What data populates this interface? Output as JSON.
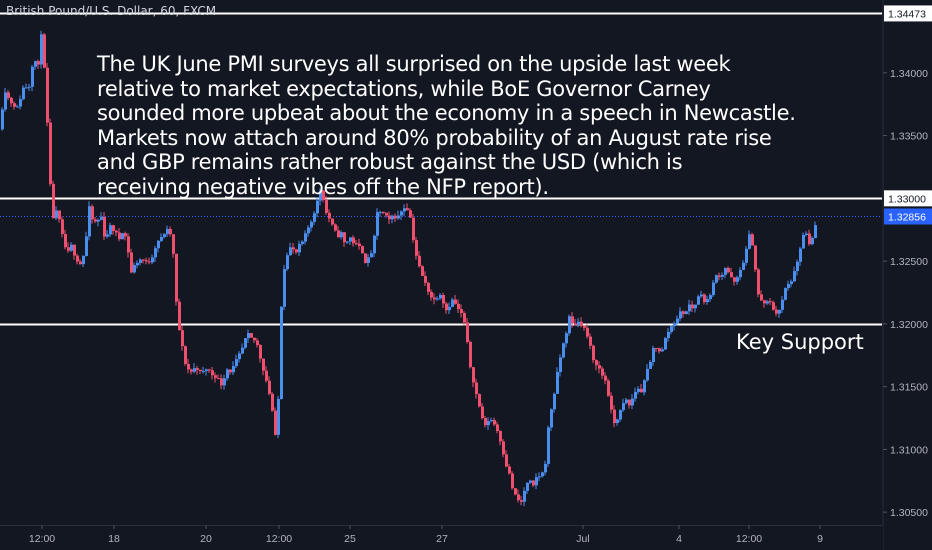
{
  "symbol_title": "British Pound/U.S. Dollar, 60, FXCM",
  "commentary_lines": [
    "The UK June PMI surveys all surprised on the upside last week",
    "relative to market expectations, while BoE Governor Carney",
    "sounded more upbeat about the economy in a speech in Newcastle.",
    "Markets now attach around 80% probability of an August rate rise",
    "and GBP remains rather robust against the USD (which is",
    "receiving negative vibes off the NFP report)."
  ],
  "annotation": "Key Support",
  "colors": {
    "background": "#131722",
    "up_candle": "#4a8ef0",
    "down_candle": "#f0506e",
    "level_line": "#ffffff",
    "current_price_line": "#2962ff",
    "axis_text": "#b2b5be"
  },
  "chart_data": {
    "type": "candlestick",
    "title": "British Pound/U.S. Dollar, 60, FXCM",
    "xlabel": "",
    "ylabel": "",
    "ylim": [
      1.3035,
      1.3458
    ],
    "grid": false,
    "x_ticks": [
      "12:00",
      "18",
      "20",
      "12:00",
      "25",
      "27",
      "Jul",
      "4",
      "12:00",
      "9"
    ],
    "y_ticks": [
      "1.34000",
      "1.33500",
      "1.32500",
      "1.32000",
      "1.31500",
      "1.31000",
      "1.30500"
    ],
    "horizontal_levels": [
      {
        "value": 1.34473,
        "label": "1.34473"
      },
      {
        "value": 1.33,
        "label": "1.33000"
      },
      {
        "value": 1.32,
        "label": "1.32000",
        "annotation": "Key Support"
      }
    ],
    "current_price": {
      "value": 1.32856,
      "label": "1.32856"
    },
    "price_path": [
      [
        0,
        1.3355
      ],
      [
        2,
        1.339
      ],
      [
        8,
        1.3378
      ],
      [
        16,
        1.3372
      ],
      [
        22,
        1.3388
      ],
      [
        28,
        1.339
      ],
      [
        32,
        1.3412
      ],
      [
        37,
        1.3405
      ],
      [
        38,
        1.3447
      ],
      [
        41,
        1.3425
      ],
      [
        45,
        1.338
      ],
      [
        48,
        1.3318
      ],
      [
        52,
        1.3285
      ],
      [
        56,
        1.329
      ],
      [
        61,
        1.327
      ],
      [
        66,
        1.3255
      ],
      [
        70,
        1.3262
      ],
      [
        75,
        1.3252
      ],
      [
        80,
        1.3247
      ],
      [
        84,
        1.3262
      ],
      [
        88,
        1.3292
      ],
      [
        92,
        1.328
      ],
      [
        96,
        1.3282
      ],
      [
        100,
        1.3285
      ],
      [
        104,
        1.3266
      ],
      [
        108,
        1.3278
      ],
      [
        112,
        1.3275
      ],
      [
        118,
        1.3268
      ],
      [
        122,
        1.3276
      ],
      [
        126,
        1.3263
      ],
      [
        130,
        1.3241
      ],
      [
        134,
        1.3248
      ],
      [
        140,
        1.3252
      ],
      [
        146,
        1.3248
      ],
      [
        150,
        1.3252
      ],
      [
        156,
        1.3266
      ],
      [
        160,
        1.3268
      ],
      [
        165,
        1.3275
      ],
      [
        171,
        1.327
      ],
      [
        174,
        1.3225
      ],
      [
        177,
        1.32
      ],
      [
        180,
        1.3185
      ],
      [
        185,
        1.3165
      ],
      [
        190,
        1.3162
      ],
      [
        195,
        1.3166
      ],
      [
        200,
        1.316
      ],
      [
        206,
        1.3165
      ],
      [
        210,
        1.316
      ],
      [
        215,
        1.3158
      ],
      [
        220,
        1.3152
      ],
      [
        226,
        1.3164
      ],
      [
        230,
        1.3162
      ],
      [
        236,
        1.3172
      ],
      [
        240,
        1.3178
      ],
      [
        246,
        1.3192
      ],
      [
        250,
        1.3188
      ],
      [
        255,
        1.3186
      ],
      [
        260,
        1.317
      ],
      [
        265,
        1.3155
      ],
      [
        270,
        1.3138
      ],
      [
        274,
        1.311
      ],
      [
        277,
        1.314
      ],
      [
        280,
        1.3215
      ],
      [
        282,
        1.324
      ],
      [
        285,
        1.3255
      ],
      [
        290,
        1.3262
      ],
      [
        294,
        1.3255
      ],
      [
        298,
        1.3262
      ],
      [
        302,
        1.3266
      ],
      [
        306,
        1.3275
      ],
      [
        310,
        1.3282
      ],
      [
        314,
        1.3292
      ],
      [
        317,
        1.33
      ],
      [
        320,
        1.331
      ],
      [
        324,
        1.329
      ],
      [
        328,
        1.3284
      ],
      [
        332,
        1.3276
      ],
      [
        336,
        1.327
      ],
      [
        340,
        1.3272
      ],
      [
        344,
        1.3262
      ],
      [
        348,
        1.327
      ],
      [
        352,
        1.3265
      ],
      [
        356,
        1.3262
      ],
      [
        360,
        1.326
      ],
      [
        364,
        1.325
      ],
      [
        368,
        1.3252
      ],
      [
        372,
        1.3262
      ],
      [
        376,
        1.3288
      ],
      [
        380,
        1.329
      ],
      [
        384,
        1.3286
      ],
      [
        388,
        1.3282
      ],
      [
        392,
        1.3287
      ],
      [
        396,
        1.3284
      ],
      [
        400,
        1.329
      ],
      [
        404,
        1.3294
      ],
      [
        408,
        1.329
      ],
      [
        412,
        1.3268
      ],
      [
        416,
        1.325
      ],
      [
        420,
        1.324
      ],
      [
        424,
        1.3232
      ],
      [
        428,
        1.3225
      ],
      [
        432,
        1.3218
      ],
      [
        436,
        1.3222
      ],
      [
        440,
        1.3225
      ],
      [
        444,
        1.321
      ],
      [
        448,
        1.3215
      ],
      [
        452,
        1.322
      ],
      [
        456,
        1.3212
      ],
      [
        460,
        1.3208
      ],
      [
        464,
        1.3198
      ],
      [
        468,
        1.317
      ],
      [
        472,
        1.3155
      ],
      [
        476,
        1.314
      ],
      [
        480,
        1.3128
      ],
      [
        484,
        1.3118
      ],
      [
        488,
        1.3125
      ],
      [
        492,
        1.3122
      ],
      [
        496,
        1.3115
      ],
      [
        500,
        1.3105
      ],
      [
        504,
        1.309
      ],
      [
        508,
        1.308
      ],
      [
        512,
        1.3066
      ],
      [
        516,
        1.306
      ],
      [
        520,
        1.3058
      ],
      [
        524,
        1.307
      ],
      [
        528,
        1.3075
      ],
      [
        532,
        1.307
      ],
      [
        536,
        1.308
      ],
      [
        540,
        1.3078
      ],
      [
        544,
        1.309
      ],
      [
        548,
        1.3125
      ],
      [
        552,
        1.314
      ],
      [
        556,
        1.316
      ],
      [
        560,
        1.3178
      ],
      [
        564,
        1.319
      ],
      [
        568,
        1.3205
      ],
      [
        572,
        1.3198
      ],
      [
        576,
        1.3202
      ],
      [
        580,
        1.32
      ],
      [
        584,
        1.3195
      ],
      [
        588,
        1.3185
      ],
      [
        592,
        1.317
      ],
      [
        596,
        1.3168
      ],
      [
        600,
        1.316
      ],
      [
        604,
        1.3155
      ],
      [
        608,
        1.314
      ],
      [
        612,
        1.312
      ],
      [
        616,
        1.3125
      ],
      [
        620,
        1.3132
      ],
      [
        624,
        1.314
      ],
      [
        628,
        1.3135
      ],
      [
        632,
        1.3142
      ],
      [
        636,
        1.315
      ],
      [
        640,
        1.3145
      ],
      [
        644,
        1.316
      ],
      [
        648,
        1.3165
      ],
      [
        652,
        1.318
      ],
      [
        656,
        1.3182
      ],
      [
        660,
        1.3176
      ],
      [
        664,
        1.3188
      ],
      [
        668,
        1.3196
      ],
      [
        672,
        1.32
      ],
      [
        676,
        1.3205
      ],
      [
        680,
        1.321
      ],
      [
        684,
        1.3208
      ],
      [
        688,
        1.3215
      ],
      [
        692,
        1.3212
      ],
      [
        696,
        1.322
      ],
      [
        700,
        1.3225
      ],
      [
        704,
        1.3215
      ],
      [
        708,
        1.3222
      ],
      [
        712,
        1.3232
      ],
      [
        716,
        1.324
      ],
      [
        720,
        1.3238
      ],
      [
        724,
        1.3245
      ],
      [
        728,
        1.324
      ],
      [
        732,
        1.3232
      ],
      [
        736,
        1.3236
      ],
      [
        740,
        1.3245
      ],
      [
        744,
        1.3255
      ],
      [
        748,
        1.327
      ],
      [
        752,
        1.3262
      ],
      [
        756,
        1.3225
      ],
      [
        760,
        1.3218
      ],
      [
        764,
        1.3216
      ],
      [
        768,
        1.3218
      ],
      [
        772,
        1.3212
      ],
      [
        776,
        1.3208
      ],
      [
        780,
        1.3215
      ],
      [
        784,
        1.3228
      ],
      [
        788,
        1.3232
      ],
      [
        792,
        1.3238
      ],
      [
        796,
        1.3248
      ],
      [
        800,
        1.3265
      ],
      [
        804,
        1.3275
      ],
      [
        808,
        1.3262
      ],
      [
        812,
        1.327
      ],
      [
        816,
        1.3286
      ]
    ]
  }
}
